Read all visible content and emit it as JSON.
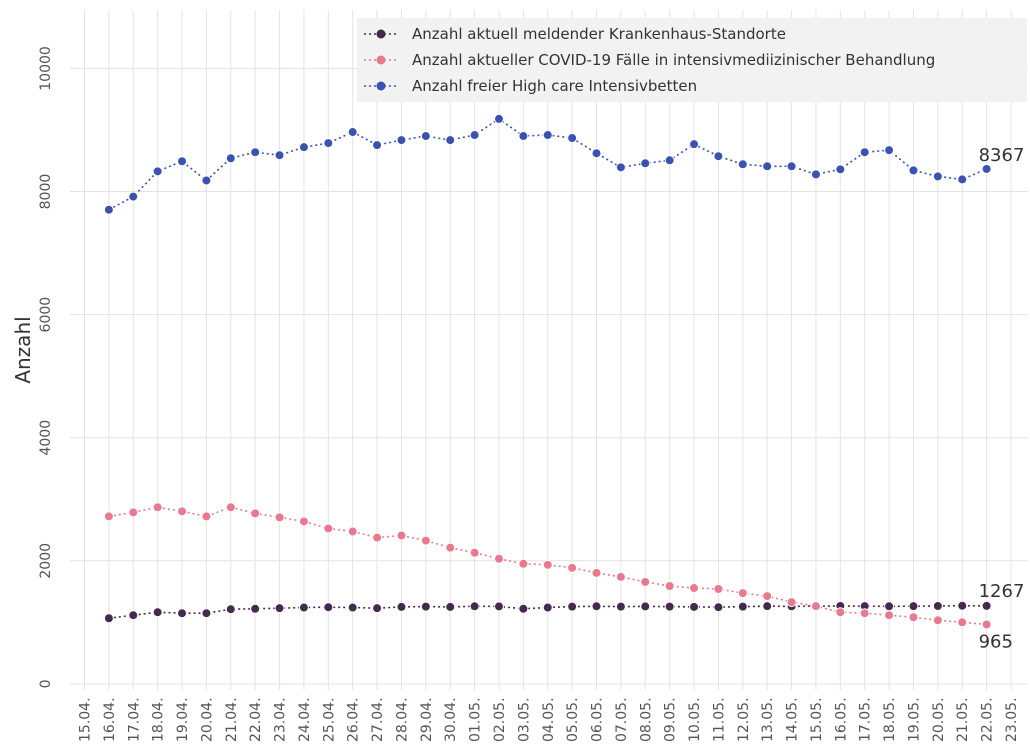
{
  "chart_data": {
    "type": "line",
    "ylabel": "Anzahl",
    "categories": [
      "15.04.",
      "16.04.",
      "17.04.",
      "18.04.",
      "19.04.",
      "20.04.",
      "21.04.",
      "22.04.",
      "23.04.",
      "24.04.",
      "25.04.",
      "26.04.",
      "27.04.",
      "28.04.",
      "29.04.",
      "30.04.",
      "01.05.",
      "02.05.",
      "03.05.",
      "04.05.",
      "05.05.",
      "06.05.",
      "07.05.",
      "08.05.",
      "09.05.",
      "10.05.",
      "11.05.",
      "12.05.",
      "13.05.",
      "14.05.",
      "15.05.",
      "16.05.",
      "17.05.",
      "18.05.",
      "19.05.",
      "20.05.",
      "21.05.",
      "22.05.",
      "23.05."
    ],
    "series": [
      {
        "name": "Anzahl aktuell meldender Krankenhaus-Standorte",
        "color": "#45294f",
        "values": [
          null,
          1066,
          1115,
          1164,
          1148,
          1148,
          1213,
          1220,
          1230,
          1240,
          1245,
          1240,
          1230,
          1250,
          1255,
          1250,
          1260,
          1258,
          1220,
          1240,
          1255,
          1260,
          1255,
          1258,
          1255,
          1250,
          1245,
          1255,
          1262,
          1260,
          1262,
          1265,
          1262,
          1260,
          1262,
          1265,
          1270,
          1267,
          null
        ]
      },
      {
        "name": "Anzahl aktueller COVID-19 Fälle in intensivmediizinischer Behandlung",
        "color": "#e87a90",
        "values": [
          null,
          2721,
          2787,
          2869,
          2803,
          2721,
          2869,
          2770,
          2705,
          2639,
          2525,
          2475,
          2377,
          2410,
          2328,
          2213,
          2131,
          2033,
          1951,
          1934,
          1885,
          1803,
          1738,
          1656,
          1590,
          1557,
          1541,
          1475,
          1426,
          1328,
          1262,
          1164,
          1148,
          1115,
          1082,
          1033,
          1000,
          965,
          null
        ]
      },
      {
        "name": "Anzahl freier High care Intensivbetten",
        "color": "#3a52b0",
        "values": [
          null,
          7705,
          7918,
          8328,
          8492,
          8180,
          8541,
          8639,
          8590,
          8721,
          8787,
          8967,
          8754,
          8836,
          8902,
          8836,
          8918,
          9180,
          8902,
          8918,
          8869,
          8623,
          8393,
          8459,
          8508,
          8770,
          8574,
          8443,
          8410,
          8410,
          8279,
          8361,
          8639,
          8672,
          8344,
          8246,
          8197,
          8367,
          null
        ]
      }
    ],
    "ylim": [
      -100,
      10950
    ],
    "yticks": [
      0,
      2000,
      4000,
      6000,
      8000,
      10000
    ],
    "grid": true,
    "legend": "top-right"
  }
}
